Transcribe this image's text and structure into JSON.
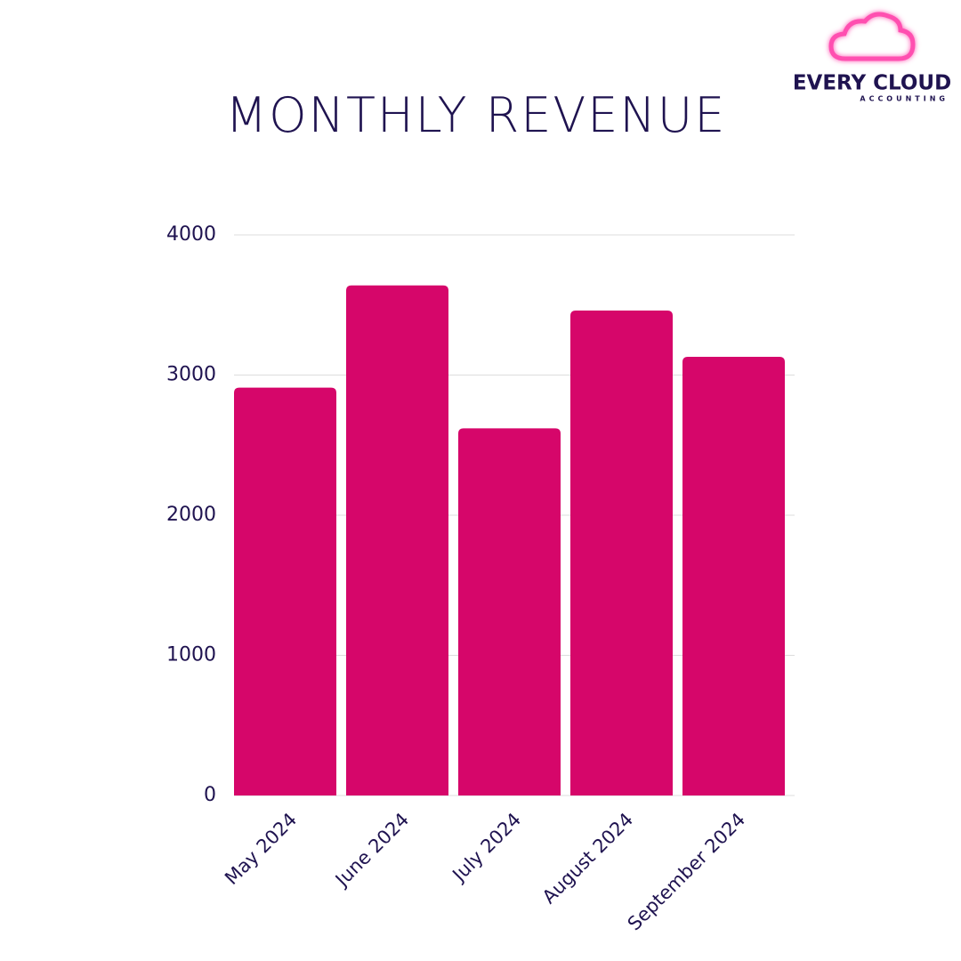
{
  "chart_data": {
    "type": "bar",
    "title": "MONTHLY REVENUE",
    "categories": [
      "May 2024",
      "June 2024",
      "July 2024",
      "August 2024",
      "September 2024"
    ],
    "values": [
      2910,
      3640,
      2620,
      3460,
      3130
    ],
    "color": "#d6066a",
    "ylim": [
      0,
      4000
    ],
    "yticks": [
      0,
      1000,
      2000,
      3000,
      4000
    ],
    "grid": true
  },
  "logo": {
    "name": "EVERY CLOUD",
    "tagline": "ACCOUNTING"
  }
}
